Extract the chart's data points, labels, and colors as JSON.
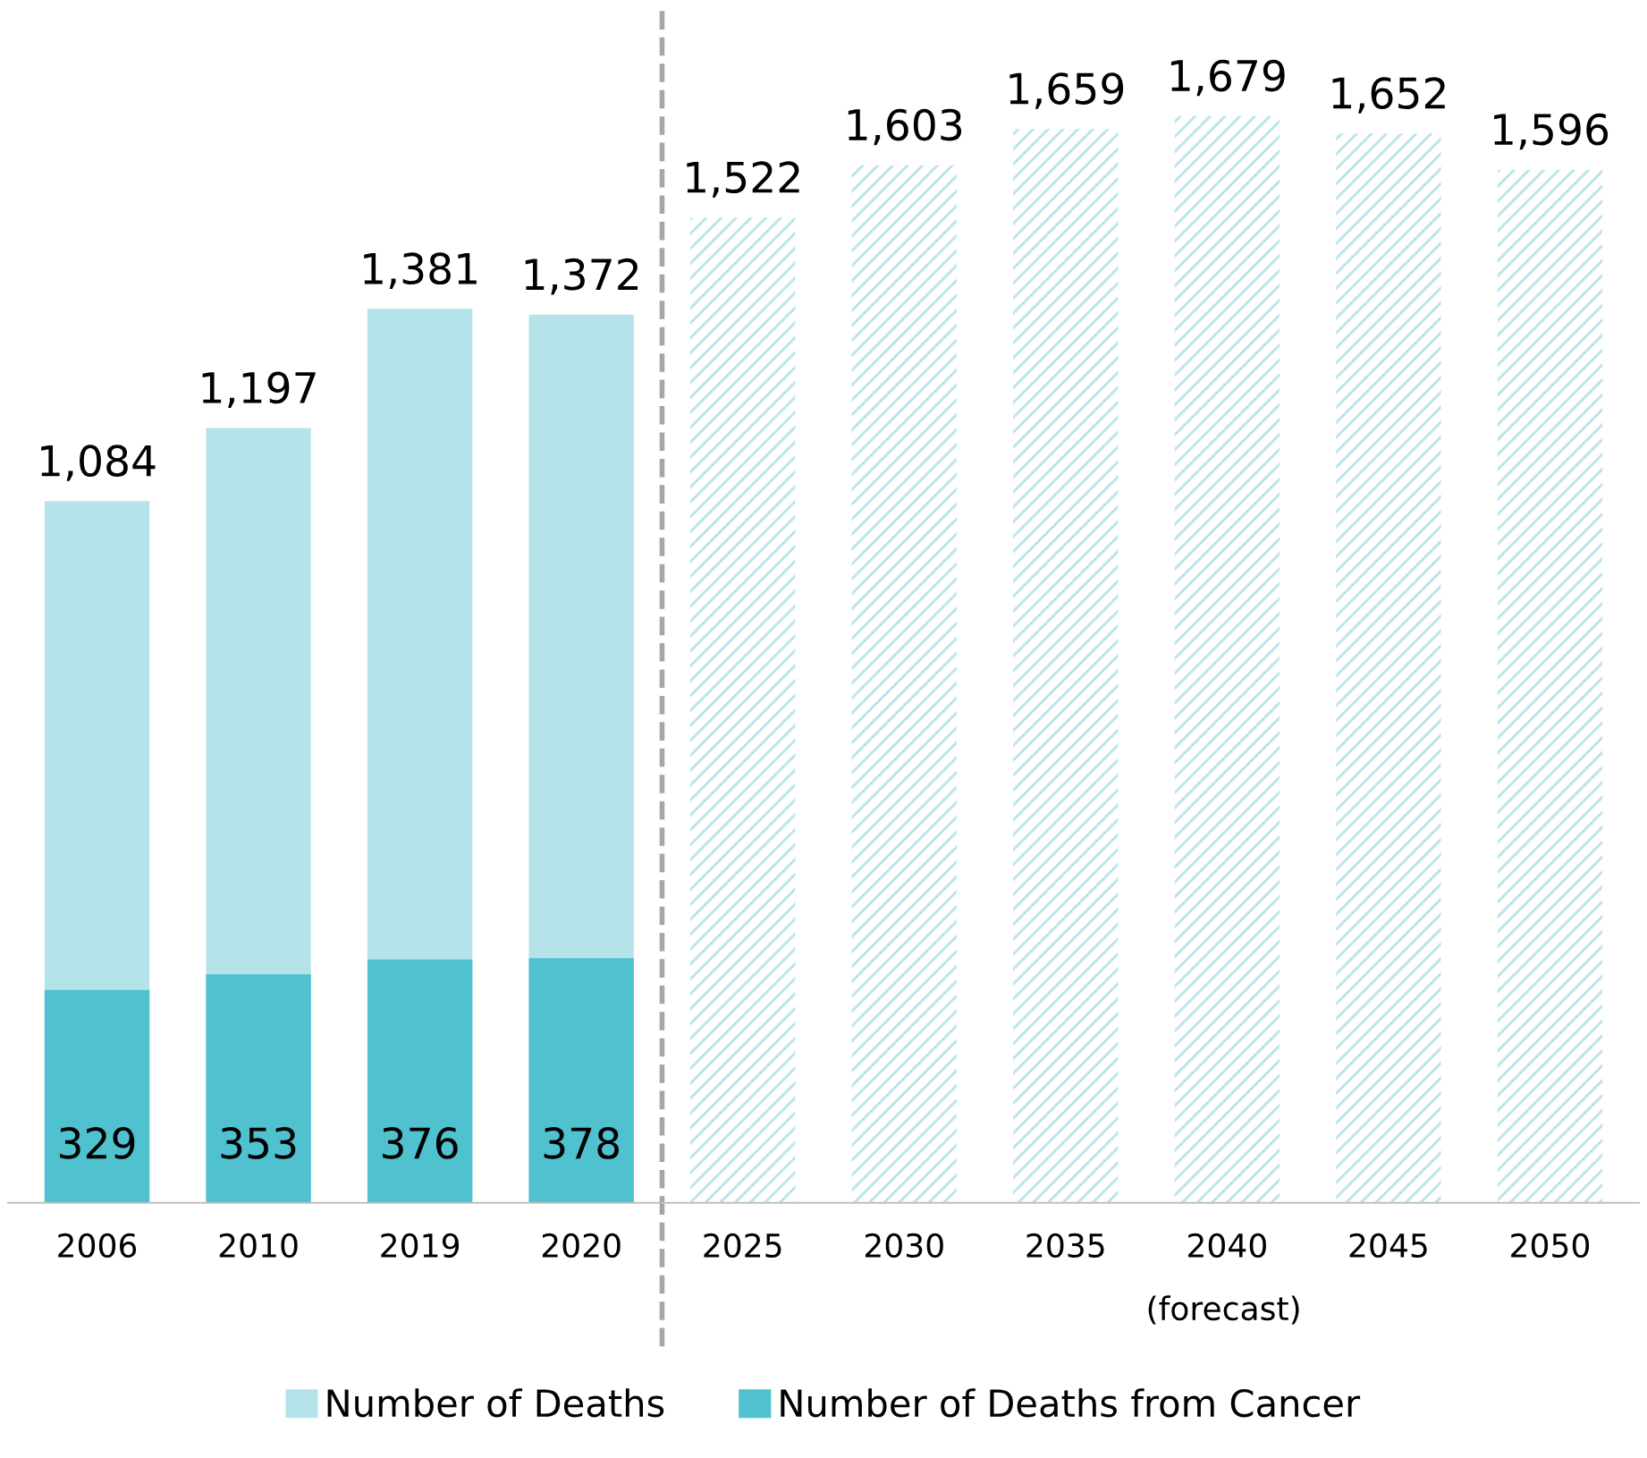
{
  "chart_data": {
    "type": "bar",
    "categories": [
      "2006",
      "2010",
      "2019",
      "2020",
      "2025",
      "2030",
      "2035",
      "2040",
      "2045",
      "2050"
    ],
    "series": [
      {
        "name": "Number of Deaths",
        "color": "#b5e3ea",
        "values": [
          1084,
          1197,
          1381,
          1372,
          1522,
          1603,
          1659,
          1679,
          1652,
          1596
        ],
        "value_labels": [
          "1,084",
          "1,197",
          "1,381",
          "1,372",
          "1,522",
          "1,603",
          "1,659",
          "1,679",
          "1,652",
          "1,596"
        ]
      },
      {
        "name": "Number of Deaths from Cancer",
        "color": "#4fc1cf",
        "values": [
          329,
          353,
          376,
          378,
          null,
          null,
          null,
          null,
          null,
          null
        ],
        "value_labels": [
          "329",
          "353",
          "376",
          "378",
          null,
          null,
          null,
          null,
          null,
          null
        ]
      }
    ],
    "legend": "bottom",
    "grid": false,
    "tick_labels": "x",
    "annotations": [
      "(forecast)"
    ]
  }
}
